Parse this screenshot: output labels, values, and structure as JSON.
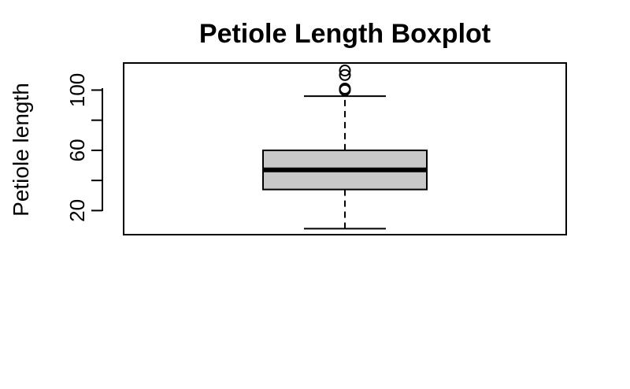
{
  "chart_data": {
    "type": "boxplot",
    "title": "Petiole Length Boxplot",
    "xlabel": "",
    "ylabel": "Petiole length",
    "ylim": [
      4,
      118
    ],
    "yticks": [
      20,
      40,
      60,
      80,
      100
    ],
    "ytick_labels": [
      "20",
      "",
      "60",
      "",
      "100"
    ],
    "grid": false,
    "legend": "none",
    "box": {
      "whisker_low": 8,
      "q1": 34,
      "median": 47,
      "q3": 60,
      "whisker_high": 96,
      "outliers": [
        100,
        101,
        110,
        113
      ]
    },
    "colors": {
      "box_fill": "#c8c8c8",
      "stroke": "#000000"
    }
  }
}
